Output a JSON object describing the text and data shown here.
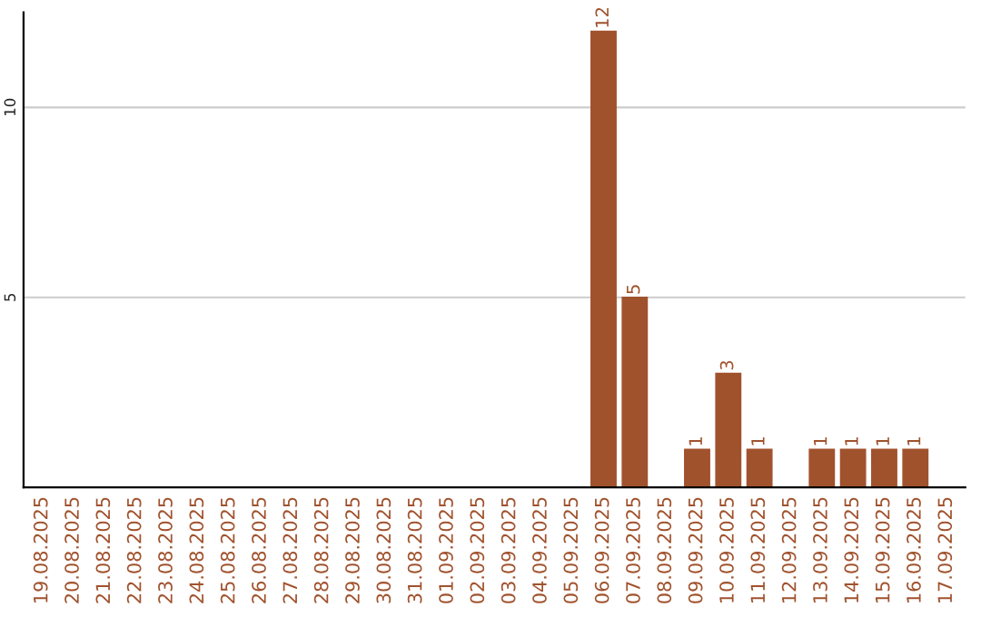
{
  "chart_data": {
    "type": "bar",
    "categories": [
      "19.08.2025",
      "20.08.2025",
      "21.08.2025",
      "22.08.2025",
      "23.08.2025",
      "24.08.2025",
      "25.08.2025",
      "26.08.2025",
      "27.08.2025",
      "28.08.2025",
      "29.08.2025",
      "30.08.2025",
      "31.08.2025",
      "01.09.2025",
      "02.09.2025",
      "03.09.2025",
      "04.09.2025",
      "05.09.2025",
      "06.09.2025",
      "07.09.2025",
      "08.09.2025",
      "09.09.2025",
      "10.09.2025",
      "11.09.2025",
      "12.09.2025",
      "13.09.2025",
      "14.09.2025",
      "15.09.2025",
      "16.09.2025",
      "17.09.2025"
    ],
    "values": [
      0,
      0,
      0,
      0,
      0,
      0,
      0,
      0,
      0,
      0,
      0,
      0,
      0,
      0,
      0,
      0,
      0,
      0,
      12,
      5,
      0,
      1,
      3,
      1,
      0,
      1,
      1,
      1,
      1,
      0
    ],
    "value_labels": [
      null,
      null,
      null,
      null,
      null,
      null,
      null,
      null,
      null,
      null,
      null,
      null,
      null,
      null,
      null,
      null,
      null,
      null,
      "12",
      "5",
      null,
      "1",
      "3",
      "1",
      null,
      "1",
      "1",
      "1",
      "1",
      null
    ],
    "color": "#a0522d",
    "ylim": [
      0,
      12.5
    ],
    "yticks": [
      5,
      10
    ],
    "grid": "y"
  }
}
